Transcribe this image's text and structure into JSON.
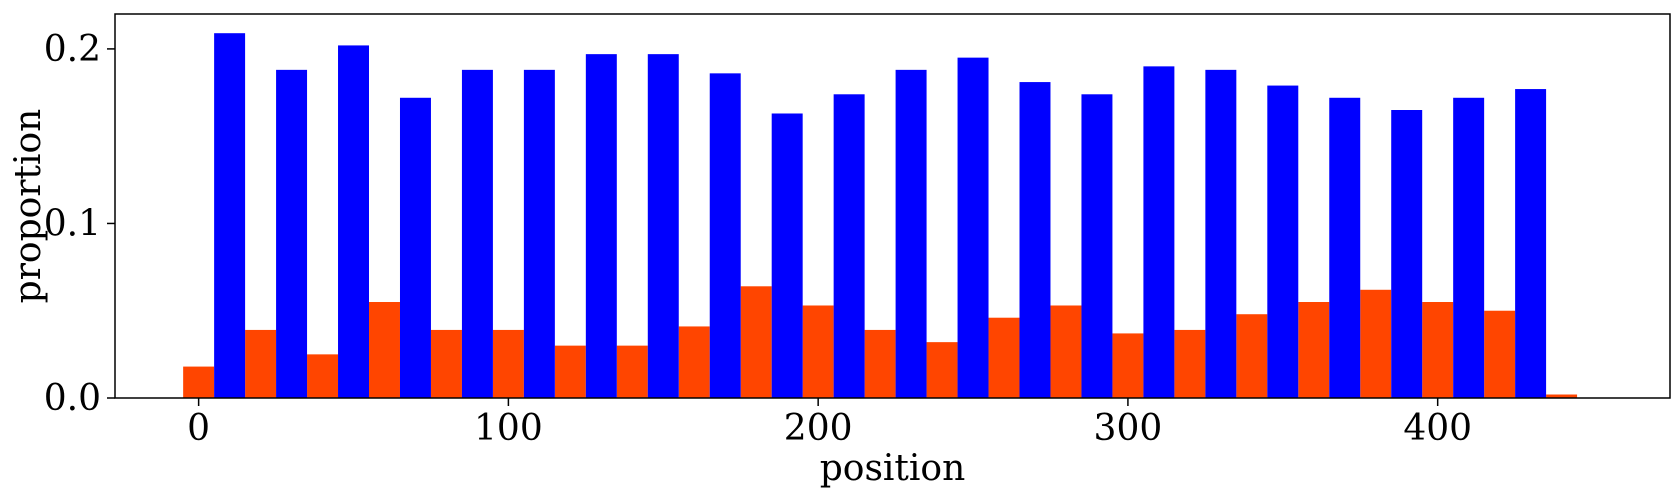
{
  "chart_data": {
    "type": "bar",
    "xlabel": "position",
    "ylabel": "proportion",
    "xlim": [
      -27,
      475
    ],
    "ylim": [
      0,
      0.22
    ],
    "xticks": [
      0,
      100,
      200,
      300,
      400
    ],
    "xtick_labels": [
      "0",
      "100",
      "200",
      "300",
      "400"
    ],
    "yticks": [
      0,
      0.1,
      0.2
    ],
    "ytick_labels": [
      "0.0",
      "0.1",
      "0.2"
    ],
    "grid": false,
    "bar_width": 10,
    "series": [
      {
        "color": "#ff4500",
        "points": [
          {
            "x": 0,
            "y": 0.018
          },
          {
            "x": 20,
            "y": 0.039
          },
          {
            "x": 40,
            "y": 0.025
          },
          {
            "x": 60,
            "y": 0.055
          },
          {
            "x": 80,
            "y": 0.039
          },
          {
            "x": 100,
            "y": 0.039
          },
          {
            "x": 120,
            "y": 0.03
          },
          {
            "x": 140,
            "y": 0.03
          },
          {
            "x": 160,
            "y": 0.041
          },
          {
            "x": 180,
            "y": 0.064
          },
          {
            "x": 200,
            "y": 0.053
          },
          {
            "x": 220,
            "y": 0.039
          },
          {
            "x": 240,
            "y": 0.032
          },
          {
            "x": 260,
            "y": 0.046
          },
          {
            "x": 280,
            "y": 0.053
          },
          {
            "x": 300,
            "y": 0.037
          },
          {
            "x": 320,
            "y": 0.039
          },
          {
            "x": 340,
            "y": 0.048
          },
          {
            "x": 360,
            "y": 0.055
          },
          {
            "x": 380,
            "y": 0.062
          },
          {
            "x": 400,
            "y": 0.055
          },
          {
            "x": 420,
            "y": 0.05
          },
          {
            "x": 440,
            "y": 0.002
          }
        ]
      },
      {
        "color": "#0000ff",
        "points": [
          {
            "x": 10,
            "y": 0.209
          },
          {
            "x": 30,
            "y": 0.188
          },
          {
            "x": 50,
            "y": 0.202
          },
          {
            "x": 70,
            "y": 0.172
          },
          {
            "x": 90,
            "y": 0.188
          },
          {
            "x": 110,
            "y": 0.188
          },
          {
            "x": 130,
            "y": 0.197
          },
          {
            "x": 150,
            "y": 0.197
          },
          {
            "x": 170,
            "y": 0.186
          },
          {
            "x": 190,
            "y": 0.163
          },
          {
            "x": 210,
            "y": 0.174
          },
          {
            "x": 230,
            "y": 0.188
          },
          {
            "x": 250,
            "y": 0.195
          },
          {
            "x": 270,
            "y": 0.181
          },
          {
            "x": 290,
            "y": 0.174
          },
          {
            "x": 310,
            "y": 0.19
          },
          {
            "x": 330,
            "y": 0.188
          },
          {
            "x": 350,
            "y": 0.179
          },
          {
            "x": 370,
            "y": 0.172
          },
          {
            "x": 390,
            "y": 0.165
          },
          {
            "x": 410,
            "y": 0.172
          },
          {
            "x": 430,
            "y": 0.177
          }
        ]
      }
    ]
  }
}
